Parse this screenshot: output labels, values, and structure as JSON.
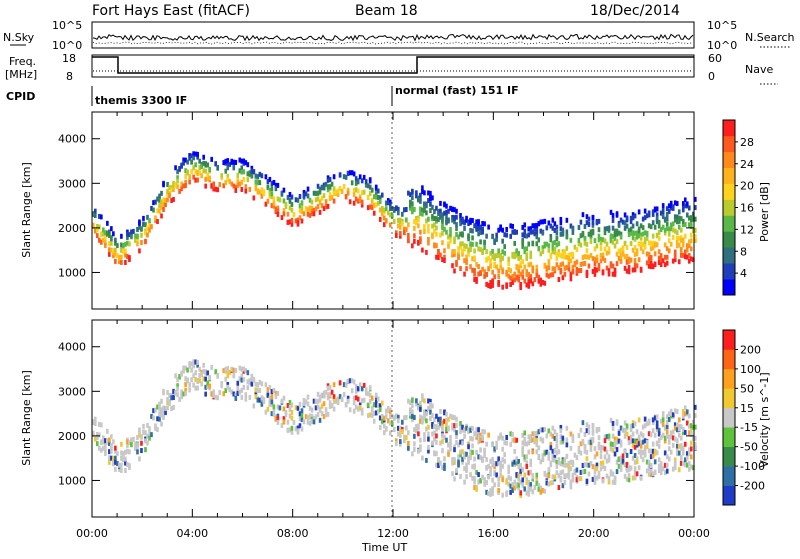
{
  "header": {
    "station": "Fort Hays East (fitACF)",
    "beam": "Beam 18",
    "date": "18/Dec/2014"
  },
  "strips": {
    "nsky_label": "N.Sky",
    "nsearch_label": "N.Search",
    "nsky_ticks": [
      "10^5",
      "10^0"
    ],
    "nsearch_ticks": [
      "10^5",
      "10^0"
    ],
    "freq_label": "Freq.",
    "freq_unit": "[MHz]",
    "freq_ticks": [
      "18",
      "8"
    ],
    "nave_label": "Nave",
    "nave_ticks": [
      "60",
      "0"
    ],
    "cpid_label": "CPID",
    "cpid_segments": [
      "themis 3300 IF",
      "normal (fast) 151 IF"
    ]
  },
  "axes": {
    "ylabel": "Slant Range [km]",
    "xlabel": "Time UT",
    "yticks": [
      "4000",
      "3000",
      "2000",
      "1000"
    ],
    "xticks": [
      "00:00",
      "04:00",
      "08:00",
      "12:00",
      "16:00",
      "20:00",
      "00:00"
    ]
  },
  "colorbars": {
    "power": {
      "label": "Power [dB]",
      "ticks": [
        "28",
        "24",
        "20",
        "16",
        "12",
        "8",
        "4"
      ],
      "colors": [
        "#0000ff",
        "#1f3fb8",
        "#2f6f80",
        "#3a8a4a",
        "#58b947",
        "#bccb2c",
        "#ffd21c",
        "#ffb31a",
        "#ff8a1b",
        "#ff5a1e",
        "#ff1e1e"
      ]
    },
    "velocity": {
      "label": "Velocity [m s^-1]",
      "ticks": [
        "200",
        "100",
        "50",
        "15",
        "-15",
        "-50",
        "-100",
        "-200"
      ],
      "colors": [
        "#1e3cc8",
        "#2f6fa5",
        "#3a8a4a",
        "#5cc33a",
        "#c8c8c8",
        "#f0c832",
        "#ffa01e",
        "#ff6414",
        "#ff1e1e"
      ]
    }
  },
  "chart_data": [
    {
      "type": "heatmap",
      "title": "Power",
      "xlabel": "Time UT",
      "ylabel": "Slant Range [km]",
      "xlim": [
        0,
        24
      ],
      "ylim": [
        180,
        4600
      ],
      "colorbar_range": [
        0,
        30
      ],
      "scatter_band": [
        {
          "t": 0.0,
          "range": 2000
        },
        {
          "t": 1.0,
          "range": 1250
        },
        {
          "t": 2.0,
          "range": 1700
        },
        {
          "t": 3.0,
          "range": 2700
        },
        {
          "t": 4.0,
          "range": 3200
        },
        {
          "t": 5.0,
          "range": 3000
        },
        {
          "t": 6.0,
          "range": 3000
        },
        {
          "t": 7.0,
          "range": 2600
        },
        {
          "t": 8.0,
          "range": 2200
        },
        {
          "t": 9.0,
          "range": 2500
        },
        {
          "t": 10.0,
          "range": 2800
        },
        {
          "t": 11.0,
          "range": 2600
        },
        {
          "t": 12.0,
          "range": 2000
        },
        {
          "t": 13.0,
          "range": 1900
        },
        {
          "t": 14.0,
          "range": 1500
        },
        {
          "t": 15.0,
          "range": 1200
        },
        {
          "t": 16.0,
          "range": 1000
        },
        {
          "t": 17.0,
          "range": 1000
        },
        {
          "t": 18.0,
          "range": 1100
        },
        {
          "t": 19.0,
          "range": 1200
        },
        {
          "t": 20.0,
          "range": 1300
        },
        {
          "t": 21.0,
          "range": 1300
        },
        {
          "t": 22.0,
          "range": 1400
        },
        {
          "t": 23.0,
          "range": 1550
        },
        {
          "t": 24.0,
          "range": 1600
        }
      ]
    },
    {
      "type": "heatmap",
      "title": "Velocity",
      "xlabel": "Time UT",
      "ylabel": "Slant Range [km]",
      "xlim": [
        0,
        24
      ],
      "ylim": [
        180,
        4600
      ],
      "colorbar_range": [
        -200,
        200
      ]
    }
  ]
}
